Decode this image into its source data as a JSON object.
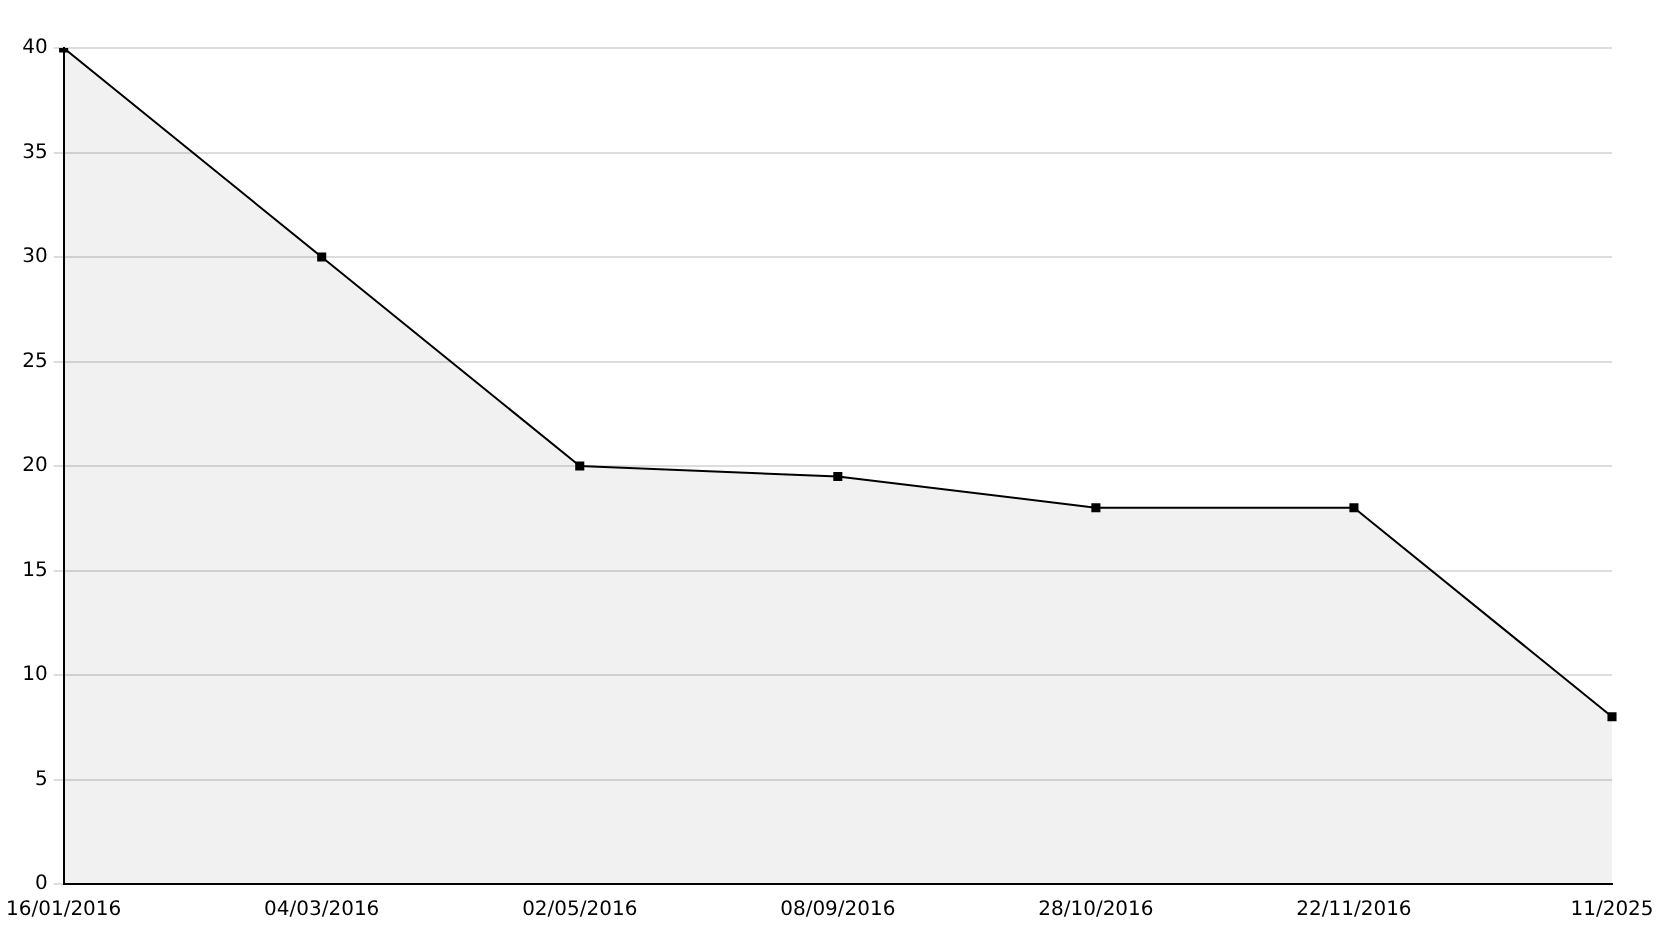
{
  "chart_data": {
    "type": "area",
    "categories": [
      "16/01/2016",
      "04/03/2016",
      "02/05/2016",
      "08/09/2016",
      "28/10/2016",
      "22/11/2016",
      "11/2025"
    ],
    "series": [
      {
        "color": "#000000",
        "values": [
          40,
          30,
          20,
          19.5,
          18,
          18,
          8
        ]
      }
    ],
    "ylim": [
      0,
      40
    ],
    "yticks": [
      0,
      5,
      10,
      15,
      20,
      25,
      30,
      35,
      40
    ],
    "grid": "y",
    "legend": false,
    "marker": "square",
    "line_style": "solid"
  }
}
